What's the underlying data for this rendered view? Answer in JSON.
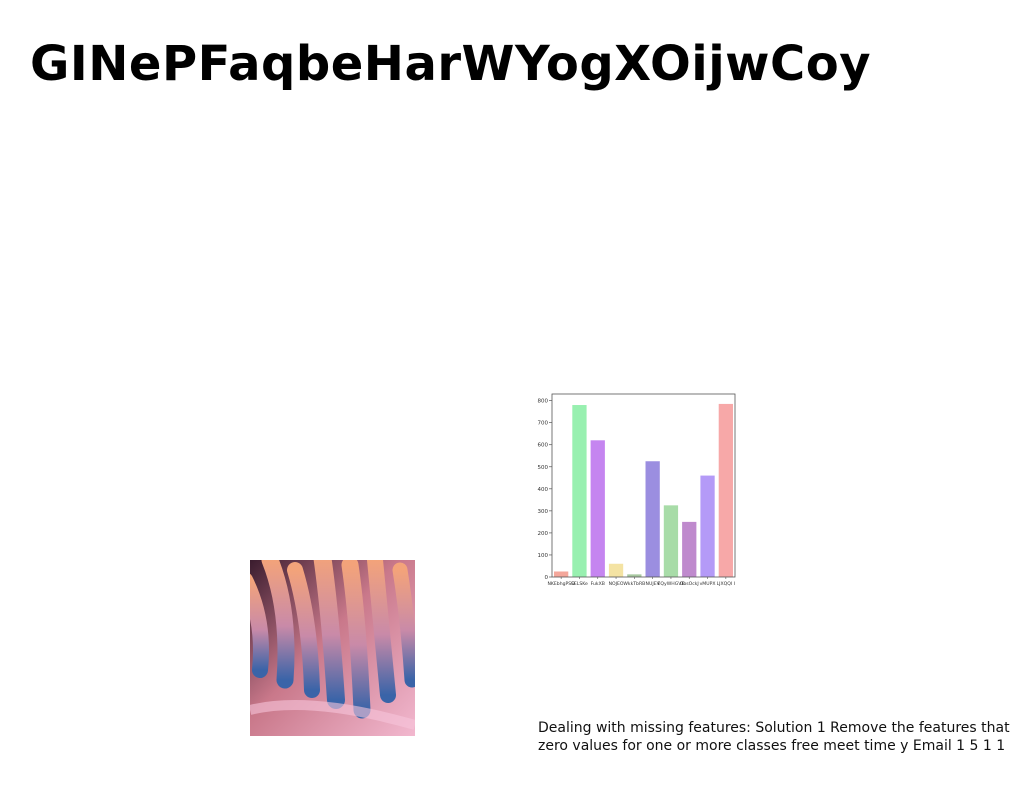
{
  "slide": {
    "title": "GINePFaqbeHarWYogXOijwCoy",
    "caption_line1": "Dealing with missing features: Solution 1 Remove the features that",
    "caption_line2": "zero values for one or more classes free meet time y Email 1 5 1 1"
  },
  "chart_data": {
    "type": "bar",
    "categories": [
      "NKEbhgPSO",
      "SELSKe",
      "FukXB",
      "NOJEO",
      "WkkTbRB",
      "NUJEV",
      "EQyWHGVE",
      "ObsOckJ",
      "vMUPX",
      "LJXQQI I"
    ],
    "values": [
      25,
      780,
      620,
      60,
      12,
      525,
      325,
      250,
      460,
      785
    ],
    "colors": [
      "#f4a79b",
      "#98f0b0",
      "#c585f0",
      "#f4e3a3",
      "#a8c8a0",
      "#9b8ee0",
      "#a8dca8",
      "#bf8acd",
      "#b49af7",
      "#f7a8a8"
    ],
    "yticks": [
      0,
      100,
      200,
      300,
      400,
      500,
      600,
      700,
      800
    ],
    "ylim": [
      0,
      830
    ],
    "title": "",
    "xlabel": "",
    "ylabel": ""
  }
}
